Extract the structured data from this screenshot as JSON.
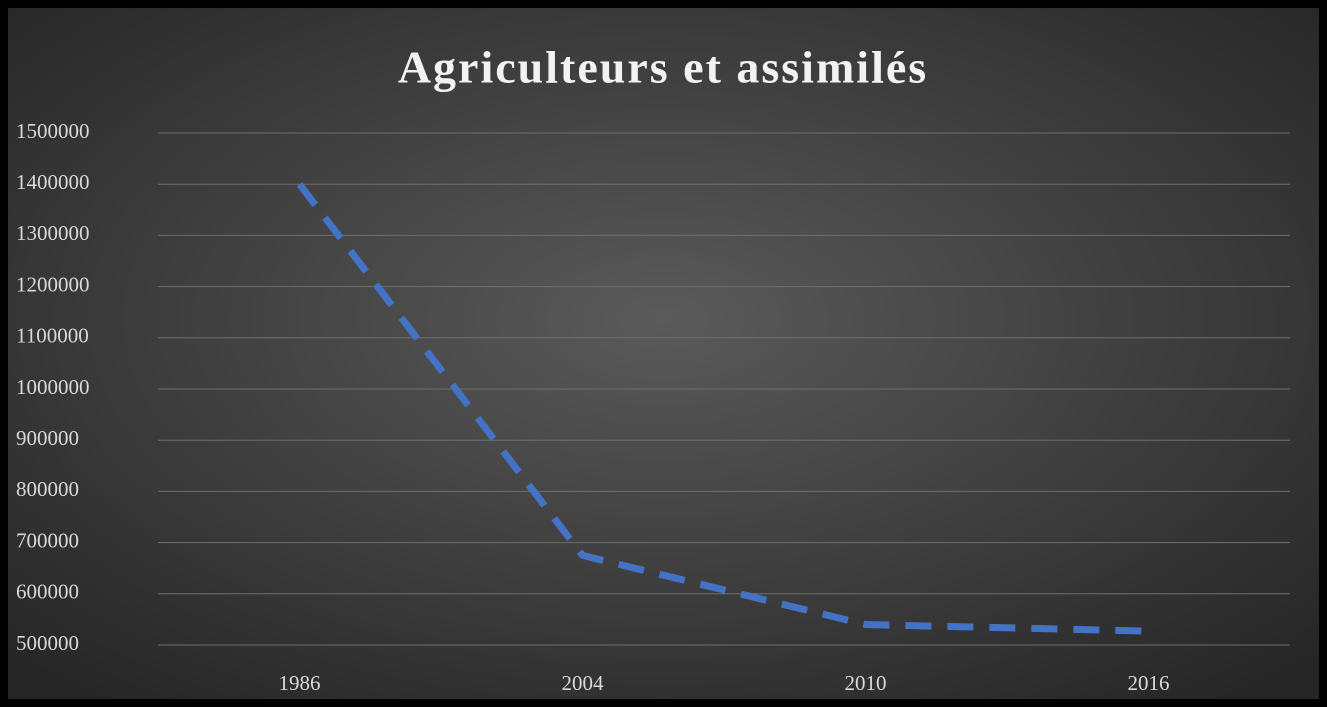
{
  "chart_data": {
    "type": "line",
    "title": "Agriculteurs et assimilés",
    "categories": [
      "1986",
      "2004",
      "2010",
      "2016"
    ],
    "series": [
      {
        "name": "Agriculteurs et assimilés",
        "color": "#4472c4",
        "values": [
          1400000,
          675000,
          540000,
          527000
        ]
      }
    ],
    "ylim": [
      500000,
      1500000
    ],
    "yticks": [
      500000,
      600000,
      700000,
      800000,
      900000,
      1000000,
      1100000,
      1200000,
      1300000,
      1400000,
      1500000
    ],
    "grid": true,
    "dashed": true
  }
}
